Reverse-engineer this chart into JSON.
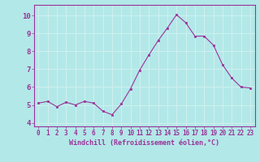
{
  "x": [
    0,
    1,
    2,
    3,
    4,
    5,
    6,
    7,
    8,
    9,
    10,
    11,
    12,
    13,
    14,
    15,
    16,
    17,
    18,
    19,
    20,
    21,
    22,
    23
  ],
  "y": [
    5.1,
    5.2,
    4.9,
    5.15,
    5.0,
    5.2,
    5.1,
    4.65,
    4.45,
    5.05,
    5.9,
    6.95,
    7.8,
    8.6,
    9.3,
    10.05,
    9.6,
    8.85,
    8.85,
    8.35,
    7.25,
    6.5,
    6.0,
    5.95
  ],
  "xlabel": "Windchill (Refroidissement éolien,°C)",
  "ylim": [
    3.8,
    10.6
  ],
  "xlim": [
    -0.5,
    23.5
  ],
  "yticks": [
    4,
    5,
    6,
    7,
    8,
    9,
    10
  ],
  "xticks": [
    0,
    1,
    2,
    3,
    4,
    5,
    6,
    7,
    8,
    9,
    10,
    11,
    12,
    13,
    14,
    15,
    16,
    17,
    18,
    19,
    20,
    21,
    22,
    23
  ],
  "line_color": "#993399",
  "marker_color": "#993399",
  "bg_color": "#b3e8e8",
  "grid_color": "#d0f0f0",
  "spine_color": "#993399",
  "label_color": "#993399",
  "tick_color": "#993399",
  "xlabel_fontsize": 6.0,
  "ytick_fontsize": 6.5,
  "xtick_fontsize": 5.5
}
